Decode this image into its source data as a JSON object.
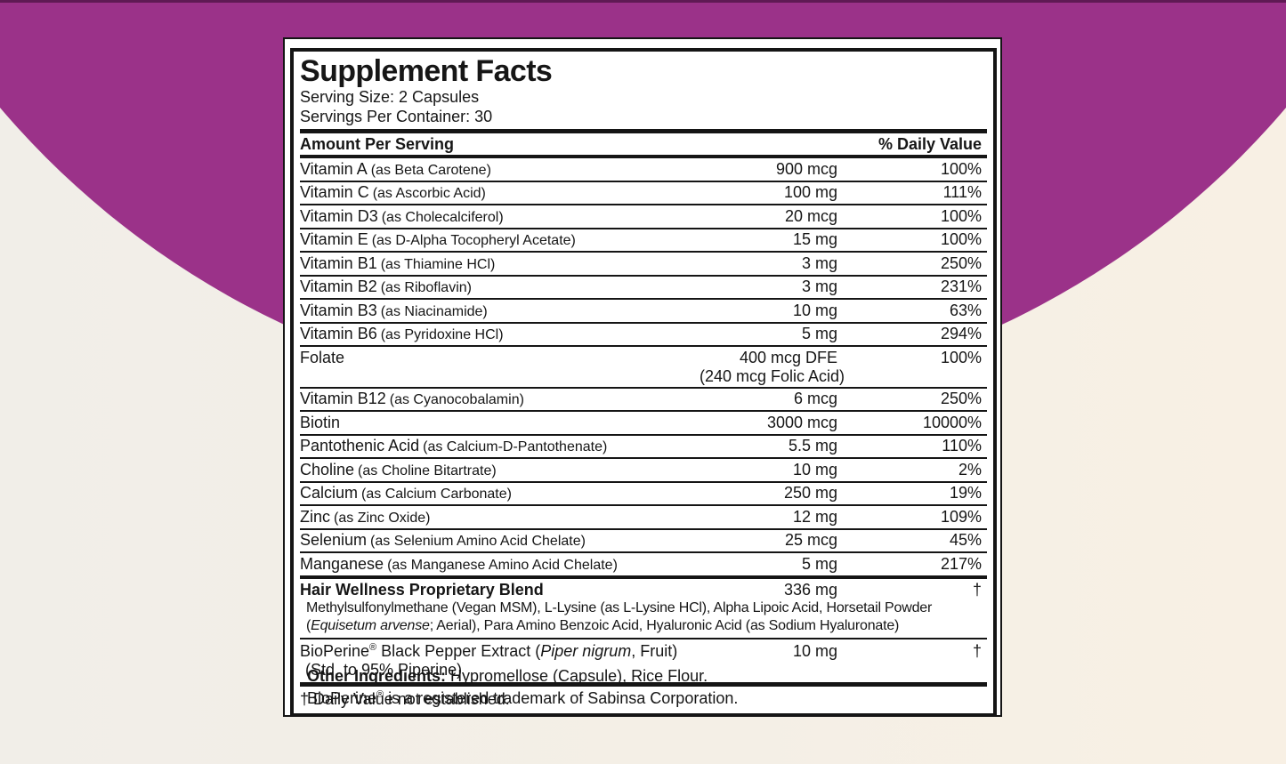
{
  "colors": {
    "arc_purple": "#9B3289",
    "background_cream": "#F3EFE7",
    "panel_white": "#FFFFFF",
    "rule_black": "#151515"
  },
  "label": {
    "title": "Supplement Facts",
    "serving_size": "Serving Size: 2 Capsules",
    "servings_per_container": "Servings Per Container: 30",
    "columns": {
      "amount_header": "Amount Per Serving",
      "dv_header": "% Daily Value"
    },
    "rows": [
      {
        "name": "Vitamin A",
        "form": "(as Beta Carotene)",
        "amount": "900 mcg",
        "dv": "100%"
      },
      {
        "name": "Vitamin C",
        "form": "(as Ascorbic Acid)",
        "amount": "100 mg",
        "dv": "111%"
      },
      {
        "name": "Vitamin D3",
        "form": "(as Cholecalciferol)",
        "amount": "20 mcg",
        "dv": "100%"
      },
      {
        "name": "Vitamin E",
        "form": "(as D-Alpha Tocopheryl Acetate)",
        "amount": "15 mg",
        "dv": "100%"
      },
      {
        "name": "Vitamin B1",
        "form": "(as Thiamine HCl)",
        "amount": "3 mg",
        "dv": "250%"
      },
      {
        "name": "Vitamin B2",
        "form": "(as Riboflavin)",
        "amount": "3 mg",
        "dv": "231%"
      },
      {
        "name": "Vitamin B3",
        "form": "(as Niacinamide)",
        "amount": "10 mg",
        "dv": "63%"
      },
      {
        "name": "Vitamin B6",
        "form": "(as Pyridoxine HCl)",
        "amount": "5 mg",
        "dv": "294%"
      },
      {
        "name": "Folate",
        "form": "",
        "amount": "400 mcg DFE",
        "amount2": "(240 mcg Folic Acid)",
        "dv": "100%"
      },
      {
        "name": "Vitamin B12",
        "form": "(as Cyanocobalamin)",
        "amount": "6 mcg",
        "dv": "250%"
      },
      {
        "name": "Biotin",
        "form": "",
        "amount": "3000 mcg",
        "dv": "10000%"
      },
      {
        "name": "Pantothenic Acid",
        "form": "(as Calcium-D-Pantothenate)",
        "amount": "5.5 mg",
        "dv": "110%"
      },
      {
        "name": "Choline",
        "form": "(as Choline Bitartrate)",
        "amount": "10 mg",
        "dv": "2%"
      },
      {
        "name": "Calcium",
        "form": "(as Calcium Carbonate)",
        "amount": "250 mg",
        "dv": "19%"
      },
      {
        "name": "Zinc",
        "form": "(as Zinc Oxide)",
        "amount": "12 mg",
        "dv": "109%"
      },
      {
        "name": "Selenium",
        "form": "(as Selenium Amino Acid Chelate)",
        "amount": "25 mcg",
        "dv": "45%"
      },
      {
        "name": "Manganese",
        "form": "(as Manganese Amino Acid Chelate)",
        "amount": "5 mg",
        "dv": "217%"
      }
    ],
    "blend": {
      "name": "Hair Wellness Proprietary Blend",
      "amount": "336 mg",
      "dv": "†",
      "desc_line1": "Methylsulfonylmethane (Vegan MSM), L-Lysine (as L-Lysine HCl), Alpha Lipoic Acid, Horsetail Powder",
      "desc2_pre": "(",
      "desc2_italic": "Equisetum arvense",
      "desc2_post": "; Aerial), Para Amino Benzoic Acid, Hyaluronic Acid (as Sodium Hyaluronate)"
    },
    "bioperine": {
      "brand": "BioPerine",
      "reg": "®",
      "name_mid": " Black Pepper Extract (",
      "latin": "Piper nigrum",
      "name_post": ", Fruit)",
      "amount": "10 mg",
      "dv": "†",
      "line2": "(Std. to 95% Piperine)"
    },
    "footnote": "† Daily Value not established.",
    "footer": {
      "other_label": "Other Ingredients:",
      "other_rest": " Hypromellose (Capsule), Rice Flour.",
      "tm_brand": "BioPerine",
      "tm_reg": "®",
      "tm_rest": " is a registered trademark of Sabinsa Corporation."
    }
  }
}
